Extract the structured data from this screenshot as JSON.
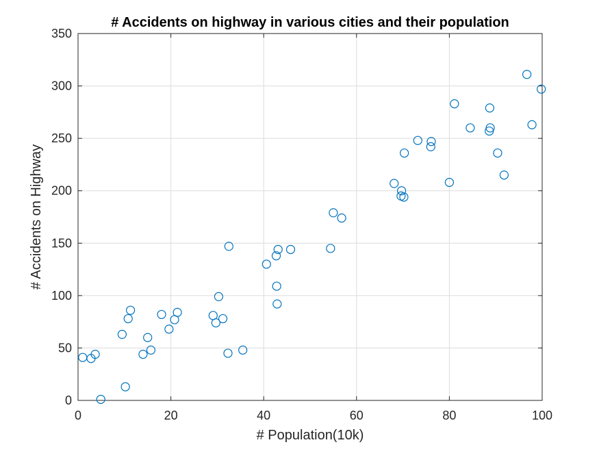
{
  "chart_data": {
    "type": "scatter",
    "title": "# Accidents on highway in various cities and their population",
    "xlabel": "# Population(10k)",
    "ylabel": "# Accidents on Highway",
    "xlim": [
      0,
      100
    ],
    "ylim": [
      0,
      350
    ],
    "xticks": [
      0,
      20,
      40,
      60,
      80,
      100
    ],
    "yticks": [
      0,
      50,
      100,
      150,
      200,
      250,
      300,
      350
    ],
    "grid": true,
    "marker": "circle-open",
    "color": "#0072BD",
    "points": [
      {
        "x": 1.0,
        "y": 41
      },
      {
        "x": 2.8,
        "y": 40
      },
      {
        "x": 3.7,
        "y": 44
      },
      {
        "x": 4.9,
        "y": 1
      },
      {
        "x": 9.5,
        "y": 63
      },
      {
        "x": 10.2,
        "y": 13
      },
      {
        "x": 10.8,
        "y": 78
      },
      {
        "x": 11.3,
        "y": 86
      },
      {
        "x": 14.0,
        "y": 44
      },
      {
        "x": 15.0,
        "y": 60
      },
      {
        "x": 15.7,
        "y": 48
      },
      {
        "x": 18.0,
        "y": 82
      },
      {
        "x": 19.6,
        "y": 68
      },
      {
        "x": 20.8,
        "y": 77
      },
      {
        "x": 21.4,
        "y": 84
      },
      {
        "x": 29.1,
        "y": 81
      },
      {
        "x": 29.7,
        "y": 74
      },
      {
        "x": 30.3,
        "y": 99
      },
      {
        "x": 31.2,
        "y": 78
      },
      {
        "x": 32.3,
        "y": 45
      },
      {
        "x": 32.5,
        "y": 147
      },
      {
        "x": 35.5,
        "y": 48
      },
      {
        "x": 40.6,
        "y": 130
      },
      {
        "x": 42.7,
        "y": 138
      },
      {
        "x": 42.8,
        "y": 109
      },
      {
        "x": 42.9,
        "y": 92
      },
      {
        "x": 43.1,
        "y": 144
      },
      {
        "x": 45.8,
        "y": 144
      },
      {
        "x": 54.4,
        "y": 145
      },
      {
        "x": 55.0,
        "y": 179
      },
      {
        "x": 56.8,
        "y": 174
      },
      {
        "x": 68.1,
        "y": 207
      },
      {
        "x": 69.6,
        "y": 195
      },
      {
        "x": 69.7,
        "y": 200
      },
      {
        "x": 70.2,
        "y": 194
      },
      {
        "x": 70.3,
        "y": 236
      },
      {
        "x": 73.2,
        "y": 248
      },
      {
        "x": 76.0,
        "y": 242
      },
      {
        "x": 76.1,
        "y": 247
      },
      {
        "x": 80.0,
        "y": 208
      },
      {
        "x": 81.1,
        "y": 283
      },
      {
        "x": 84.5,
        "y": 260
      },
      {
        "x": 88.6,
        "y": 257
      },
      {
        "x": 88.7,
        "y": 279
      },
      {
        "x": 88.8,
        "y": 260
      },
      {
        "x": 90.4,
        "y": 236
      },
      {
        "x": 91.8,
        "y": 215
      },
      {
        "x": 96.7,
        "y": 311
      },
      {
        "x": 97.8,
        "y": 263
      },
      {
        "x": 99.8,
        "y": 297
      }
    ]
  }
}
